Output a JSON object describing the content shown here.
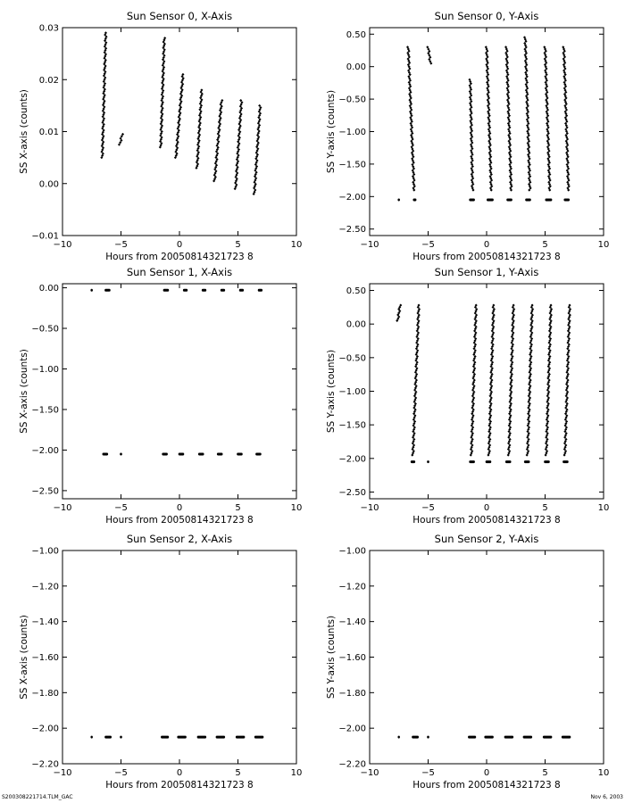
{
  "footer": {
    "left": "S200308221714.TLM_GAC",
    "right": "Nov 6, 2003"
  },
  "chart_data": [
    {
      "type": "scatter",
      "title": "Sun Sensor 0, X-Axis",
      "xlabel": "Hours from 20050814321723 8",
      "ylabel": "SS X-axis (counts)",
      "xlim": [
        -10,
        10
      ],
      "ylim": [
        -0.01,
        0.03
      ],
      "xticks": [
        -10,
        -5,
        0,
        5,
        10
      ],
      "yticks": [
        -0.01,
        0.0,
        0.01,
        0.02,
        0.03
      ],
      "ytick_labels": [
        "-0.01",
        "0.00",
        "0.01",
        "0.02",
        "0.03"
      ],
      "segments": [
        {
          "x": [
            -6.6,
            -6.3
          ],
          "y": [
            0.005,
            0.029
          ]
        },
        {
          "x": [
            -5.1,
            -4.9
          ],
          "y": [
            0.0075,
            0.0095
          ]
        },
        {
          "x": [
            -1.6,
            -1.3
          ],
          "y": [
            0.007,
            0.028
          ]
        },
        {
          "x": [
            -0.3,
            0.3
          ],
          "y": [
            0.005,
            0.021
          ]
        },
        {
          "x": [
            1.5,
            1.9
          ],
          "y": [
            0.003,
            0.018
          ]
        },
        {
          "x": [
            3.0,
            3.6
          ],
          "y": [
            0.0005,
            0.016
          ]
        },
        {
          "x": [
            4.8,
            5.3
          ],
          "y": [
            -0.001,
            0.016
          ]
        },
        {
          "x": [
            6.4,
            6.9
          ],
          "y": [
            -0.002,
            0.015
          ]
        }
      ]
    },
    {
      "type": "scatter",
      "title": "Sun Sensor 0, Y-Axis",
      "xlabel": "Hours from 20050814321723 8",
      "ylabel": "SS Y-axis (counts)",
      "xlim": [
        -10,
        10
      ],
      "ylim": [
        -2.6,
        0.6
      ],
      "xticks": [
        -10,
        -5,
        0,
        5,
        10
      ],
      "yticks": [
        -2.5,
        -2.0,
        -1.5,
        -1.0,
        -0.5,
        0.0,
        0.5
      ],
      "ytick_labels": [
        "-2.50",
        "-2.00",
        "-1.50",
        "-1.00",
        "-0.50",
        "0.00",
        "0.50"
      ],
      "segments": [
        {
          "x": [
            -6.7,
            -6.2
          ],
          "y": [
            0.3,
            -1.9
          ]
        },
        {
          "x": [
            -5.0,
            -4.8
          ],
          "y": [
            0.3,
            0.05
          ]
        },
        {
          "x": [
            -1.4,
            -1.2
          ],
          "y": [
            -0.2,
            -1.9
          ]
        },
        {
          "x": [
            0.0,
            0.4
          ],
          "y": [
            0.3,
            -1.9
          ]
        },
        {
          "x": [
            1.7,
            2.1
          ],
          "y": [
            0.3,
            -1.9
          ]
        },
        {
          "x": [
            3.3,
            3.7
          ],
          "y": [
            0.45,
            -1.9
          ]
        },
        {
          "x": [
            5.0,
            5.4
          ],
          "y": [
            0.3,
            -1.9
          ]
        },
        {
          "x": [
            6.6,
            7.0
          ],
          "y": [
            0.3,
            -1.9
          ]
        }
      ],
      "clusters": [
        {
          "x": [
            -7.6,
            -7.5
          ],
          "y": -2.05
        },
        {
          "x": [
            -6.3,
            -6.0
          ],
          "y": -2.05
        },
        {
          "x": [
            -1.5,
            -1.0
          ],
          "y": -2.05
        },
        {
          "x": [
            0.0,
            0.6
          ],
          "y": -2.05
        },
        {
          "x": [
            1.7,
            2.2
          ],
          "y": -2.05
        },
        {
          "x": [
            3.3,
            3.8
          ],
          "y": -2.05
        },
        {
          "x": [
            5.0,
            5.6
          ],
          "y": -2.05
        },
        {
          "x": [
            6.6,
            7.1
          ],
          "y": -2.05
        }
      ]
    },
    {
      "type": "scatter",
      "title": "Sun Sensor 1, X-Axis",
      "xlabel": "Hours from 20050814321723 8",
      "ylabel": "SS X-axis (counts)",
      "xlim": [
        -10,
        10
      ],
      "ylim": [
        -2.6,
        0.05
      ],
      "xticks": [
        -10,
        -5,
        0,
        5,
        10
      ],
      "yticks": [
        -2.5,
        -2.0,
        -1.5,
        -1.0,
        -0.5,
        0.0
      ],
      "ytick_labels": [
        "-2.50",
        "-2.00",
        "-1.50",
        "-1.00",
        "-0.50",
        "0.00"
      ],
      "clusters": [
        {
          "x": [
            -7.6,
            -7.5
          ],
          "y": -0.03
        },
        {
          "x": [
            -6.4,
            -5.9
          ],
          "y": -0.03
        },
        {
          "x": [
            -1.4,
            -0.9
          ],
          "y": -0.03
        },
        {
          "x": [
            0.3,
            0.7
          ],
          "y": -0.03
        },
        {
          "x": [
            1.9,
            2.3
          ],
          "y": -0.03
        },
        {
          "x": [
            3.5,
            3.9
          ],
          "y": -0.03
        },
        {
          "x": [
            5.1,
            5.5
          ],
          "y": -0.03
        },
        {
          "x": [
            6.7,
            7.1
          ],
          "y": -0.03
        },
        {
          "x": [
            -6.6,
            -6.1
          ],
          "y": -2.05
        },
        {
          "x": [
            -5.1,
            -4.9
          ],
          "y": -2.05
        },
        {
          "x": [
            -1.5,
            -1.0
          ],
          "y": -2.05
        },
        {
          "x": [
            -0.1,
            0.4
          ],
          "y": -2.05
        },
        {
          "x": [
            1.6,
            2.1
          ],
          "y": -2.05
        },
        {
          "x": [
            3.2,
            3.7
          ],
          "y": -2.05
        },
        {
          "x": [
            4.9,
            5.4
          ],
          "y": -2.05
        },
        {
          "x": [
            6.5,
            7.0
          ],
          "y": -2.05
        }
      ]
    },
    {
      "type": "scatter",
      "title": "Sun Sensor 1, Y-Axis",
      "xlabel": "Hours from 20050814321723 8",
      "ylabel": "SS Y-axis (counts)",
      "xlim": [
        -10,
        10
      ],
      "ylim": [
        -2.6,
        0.6
      ],
      "xticks": [
        -10,
        -5,
        0,
        5,
        10
      ],
      "yticks": [
        -2.5,
        -2.0,
        -1.5,
        -1.0,
        -0.5,
        0.0,
        0.5
      ],
      "ytick_labels": [
        "-2.50",
        "-2.00",
        "-1.50",
        "-1.00",
        "-0.50",
        "0.00",
        "0.50"
      ],
      "segments": [
        {
          "x": [
            -7.6,
            -7.4
          ],
          "y": [
            0.05,
            0.28
          ]
        },
        {
          "x": [
            -6.3,
            -5.8
          ],
          "y": [
            -1.95,
            0.28
          ]
        },
        {
          "x": [
            -1.3,
            -0.9
          ],
          "y": [
            -1.95,
            0.28
          ]
        },
        {
          "x": [
            0.2,
            0.6
          ],
          "y": [
            -1.95,
            0.28
          ]
        },
        {
          "x": [
            1.9,
            2.3
          ],
          "y": [
            -1.95,
            0.28
          ]
        },
        {
          "x": [
            3.5,
            3.9
          ],
          "y": [
            -1.95,
            0.28
          ]
        },
        {
          "x": [
            5.1,
            5.5
          ],
          "y": [
            -1.95,
            0.28
          ]
        },
        {
          "x": [
            6.7,
            7.1
          ],
          "y": [
            -1.95,
            0.28
          ]
        }
      ],
      "clusters": [
        {
          "x": [
            -6.5,
            -6.1
          ],
          "y": -2.05
        },
        {
          "x": [
            -5.1,
            -4.9
          ],
          "y": -2.05
        },
        {
          "x": [
            -1.5,
            -1.0
          ],
          "y": -2.05
        },
        {
          "x": [
            -0.1,
            0.4
          ],
          "y": -2.05
        },
        {
          "x": [
            1.6,
            2.1
          ],
          "y": -2.05
        },
        {
          "x": [
            3.2,
            3.7
          ],
          "y": -2.05
        },
        {
          "x": [
            4.9,
            5.4
          ],
          "y": -2.05
        },
        {
          "x": [
            6.5,
            7.0
          ],
          "y": -2.05
        }
      ]
    },
    {
      "type": "scatter",
      "title": "Sun Sensor 2, X-Axis",
      "xlabel": "Hours from 20050814321723 8",
      "ylabel": "SS X-axis (counts)",
      "xlim": [
        -10,
        10
      ],
      "ylim": [
        -2.2,
        -1.0
      ],
      "xticks": [
        -10,
        -5,
        0,
        5,
        10
      ],
      "yticks": [
        -2.2,
        -2.0,
        -1.8,
        -1.6,
        -1.4,
        -1.2,
        -1.0
      ],
      "ytick_labels": [
        "-2.20",
        "-2.00",
        "-1.80",
        "-1.60",
        "-1.40",
        "-1.20",
        "-1.00"
      ],
      "clusters": [
        {
          "x": [
            -7.6,
            -7.5
          ],
          "y": -2.05
        },
        {
          "x": [
            -6.4,
            -5.8
          ],
          "y": -2.05
        },
        {
          "x": [
            -5.1,
            -4.9
          ],
          "y": -2.05
        },
        {
          "x": [
            -1.6,
            -0.9
          ],
          "y": -2.05
        },
        {
          "x": [
            -0.2,
            0.6
          ],
          "y": -2.05
        },
        {
          "x": [
            1.5,
            2.3
          ],
          "y": -2.05
        },
        {
          "x": [
            3.1,
            3.9
          ],
          "y": -2.05
        },
        {
          "x": [
            4.8,
            5.6
          ],
          "y": -2.05
        },
        {
          "x": [
            6.4,
            7.2
          ],
          "y": -2.05
        }
      ]
    },
    {
      "type": "scatter",
      "title": "Sun Sensor 2, Y-Axis",
      "xlabel": "Hours from 20050814321723 8",
      "ylabel": "SS Y-axis (counts)",
      "xlim": [
        -10,
        10
      ],
      "ylim": [
        -2.2,
        -1.0
      ],
      "xticks": [
        -10,
        -5,
        0,
        5,
        10
      ],
      "yticks": [
        -2.2,
        -2.0,
        -1.8,
        -1.6,
        -1.4,
        -1.2,
        -1.0
      ],
      "ytick_labels": [
        "-2.20",
        "-2.00",
        "-1.80",
        "-1.60",
        "-1.40",
        "-1.20",
        "-1.00"
      ],
      "clusters": [
        {
          "x": [
            -7.6,
            -7.5
          ],
          "y": -2.05
        },
        {
          "x": [
            -6.4,
            -5.8
          ],
          "y": -2.05
        },
        {
          "x": [
            -5.1,
            -4.9
          ],
          "y": -2.05
        },
        {
          "x": [
            -1.6,
            -0.9
          ],
          "y": -2.05
        },
        {
          "x": [
            -0.2,
            0.6
          ],
          "y": -2.05
        },
        {
          "x": [
            1.5,
            2.3
          ],
          "y": -2.05
        },
        {
          "x": [
            3.1,
            3.9
          ],
          "y": -2.05
        },
        {
          "x": [
            4.8,
            5.6
          ],
          "y": -2.05
        },
        {
          "x": [
            6.4,
            7.2
          ],
          "y": -2.05
        }
      ]
    }
  ]
}
